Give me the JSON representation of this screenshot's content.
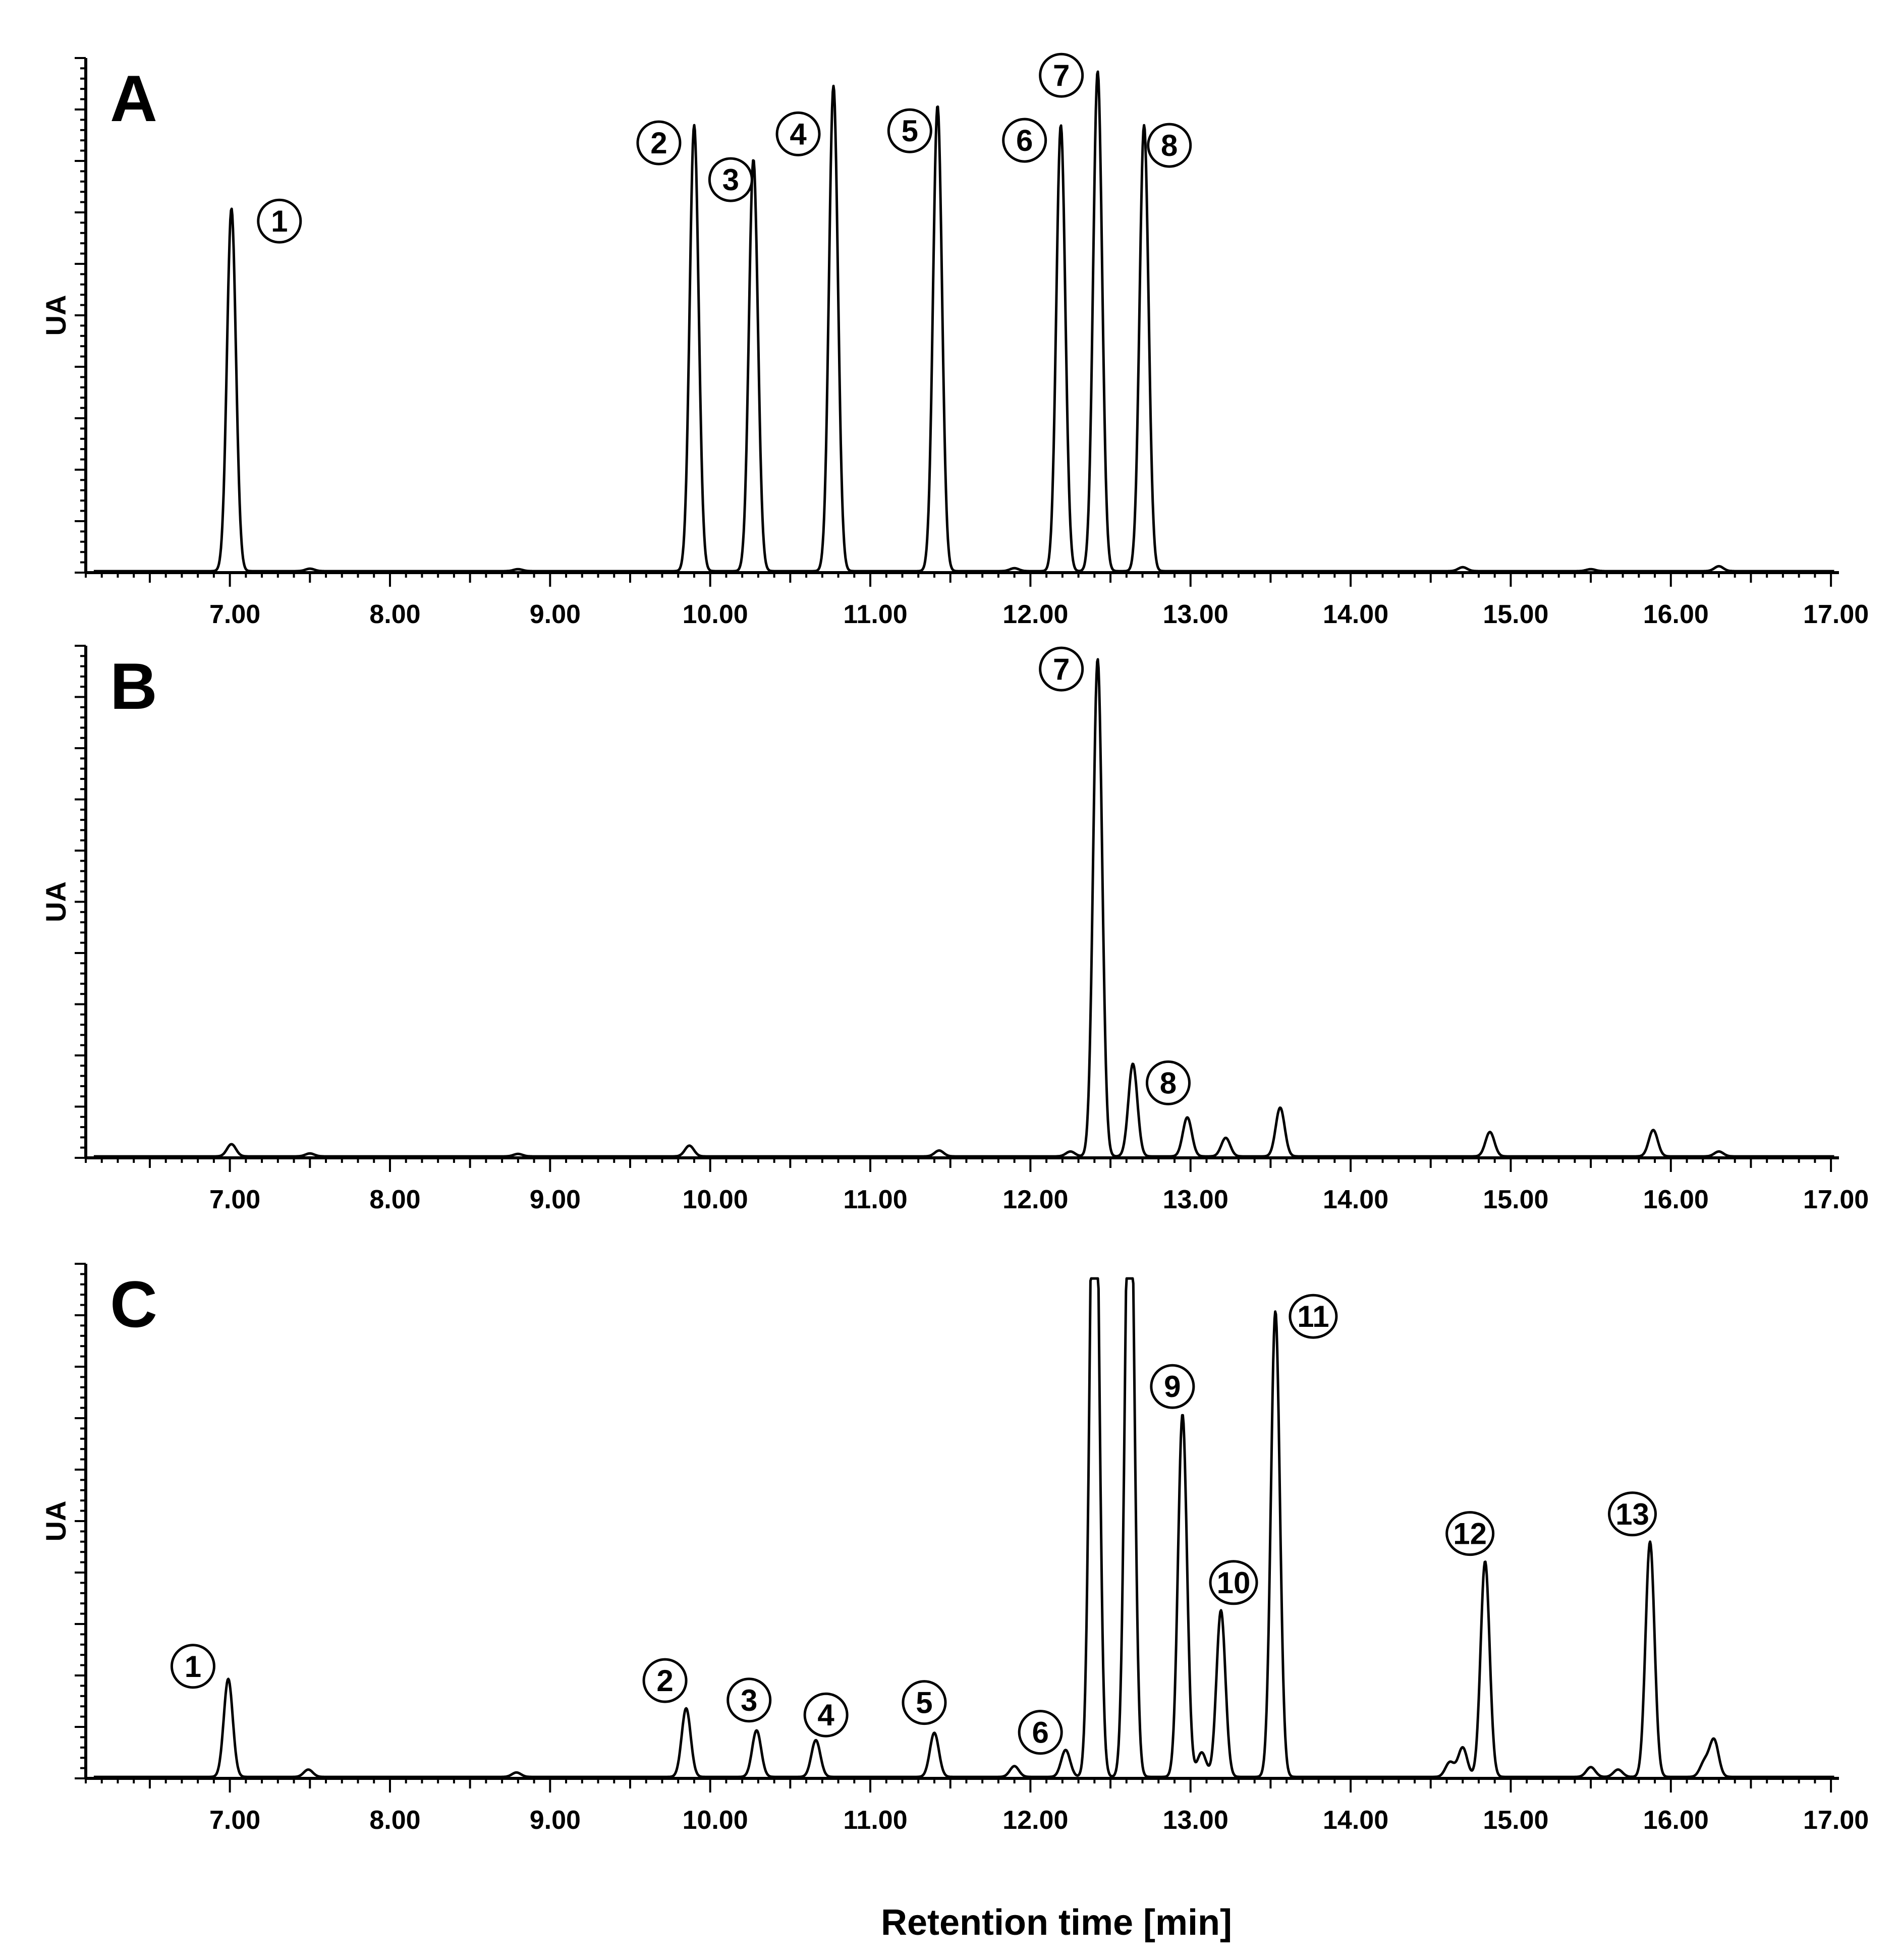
{
  "figure": {
    "xlabel": "Retention time [min]"
  },
  "chart_data": [
    {
      "type": "line",
      "panel": "A",
      "ylabel": "UA",
      "xlabel": "",
      "xlim": [
        6.1,
        17.05
      ],
      "ylim": [
        0,
        1.05
      ],
      "xticks": [
        "7.00",
        "8.00",
        "9.00",
        "10.00",
        "11.00",
        "12.00",
        "13.00",
        "14.00",
        "15.00",
        "16.00",
        "17.00"
      ],
      "baseline": 0.003,
      "peaks": [
        {
          "rt": 7.01,
          "height": 0.74,
          "label": "1"
        },
        {
          "rt": 7.5,
          "height": 0.005
        },
        {
          "rt": 8.8,
          "height": 0.004
        },
        {
          "rt": 9.9,
          "height": 0.91,
          "label": "2"
        },
        {
          "rt": 10.27,
          "height": 0.84,
          "label": "3"
        },
        {
          "rt": 10.77,
          "height": 0.99,
          "label": "4"
        },
        {
          "rt": 11.42,
          "height": 0.95,
          "label": "5"
        },
        {
          "rt": 11.9,
          "height": 0.006
        },
        {
          "rt": 12.19,
          "height": 0.91,
          "label": "6"
        },
        {
          "rt": 12.42,
          "height": 1.02,
          "label": "7"
        },
        {
          "rt": 12.71,
          "height": 0.91,
          "label": "8"
        },
        {
          "rt": 14.7,
          "height": 0.008
        },
        {
          "rt": 15.5,
          "height": 0.004
        },
        {
          "rt": 16.3,
          "height": 0.01
        }
      ]
    },
    {
      "type": "line",
      "panel": "B",
      "ylabel": "UA",
      "xlabel": "",
      "xlim": [
        6.1,
        17.05
      ],
      "ylim": [
        0,
        1.05
      ],
      "xticks": [
        "7.00",
        "8.00",
        "9.00",
        "10.00",
        "11.00",
        "12.00",
        "13.00",
        "14.00",
        "15.00",
        "16.00",
        "17.00"
      ],
      "baseline": 0.003,
      "peaks": [
        {
          "rt": 7.01,
          "height": 0.025
        },
        {
          "rt": 7.5,
          "height": 0.006
        },
        {
          "rt": 8.8,
          "height": 0.005
        },
        {
          "rt": 9.87,
          "height": 0.022
        },
        {
          "rt": 11.43,
          "height": 0.012
        },
        {
          "rt": 12.25,
          "height": 0.01
        },
        {
          "rt": 12.42,
          "height": 1.02,
          "label": "7"
        },
        {
          "rt": 12.64,
          "height": 0.19,
          "label": "8"
        },
        {
          "rt": 12.98,
          "height": 0.08
        },
        {
          "rt": 13.22,
          "height": 0.038
        },
        {
          "rt": 13.56,
          "height": 0.1
        },
        {
          "rt": 14.87,
          "height": 0.05
        },
        {
          "rt": 15.89,
          "height": 0.054
        },
        {
          "rt": 16.3,
          "height": 0.01
        }
      ]
    },
    {
      "type": "line",
      "panel": "C",
      "ylabel": "UA",
      "xlabel": "",
      "xlim": [
        6.1,
        17.05
      ],
      "ylim": [
        0,
        1.05
      ],
      "xticks": [
        "7.00",
        "8.00",
        "9.00",
        "10.00",
        "11.00",
        "12.00",
        "13.00",
        "14.00",
        "15.00",
        "16.00",
        "17.00"
      ],
      "baseline": 0.003,
      "clip_top": 1.02,
      "peaks": [
        {
          "rt": 6.99,
          "height": 0.2,
          "label": "1"
        },
        {
          "rt": 7.49,
          "height": 0.015
        },
        {
          "rt": 8.79,
          "height": 0.009
        },
        {
          "rt": 9.85,
          "height": 0.14,
          "label": "2"
        },
        {
          "rt": 10.29,
          "height": 0.095,
          "label": "3"
        },
        {
          "rt": 10.66,
          "height": 0.075,
          "label": "4"
        },
        {
          "rt": 11.4,
          "height": 0.09,
          "label": "5"
        },
        {
          "rt": 11.9,
          "height": 0.022
        },
        {
          "rt": 12.22,
          "height": 0.055,
          "label": "6"
        },
        {
          "rt": 12.4,
          "height": 1.5,
          "clipped": true
        },
        {
          "rt": 12.62,
          "height": 1.4,
          "clipped": true
        },
        {
          "rt": 12.95,
          "height": 0.74,
          "label": "9"
        },
        {
          "rt": 13.07,
          "height": 0.05
        },
        {
          "rt": 13.19,
          "height": 0.34,
          "label": "10"
        },
        {
          "rt": 13.53,
          "height": 0.95,
          "label": "11"
        },
        {
          "rt": 14.62,
          "height": 0.03
        },
        {
          "rt": 14.7,
          "height": 0.06
        },
        {
          "rt": 14.84,
          "height": 0.44,
          "label": "12"
        },
        {
          "rt": 15.5,
          "height": 0.02
        },
        {
          "rt": 15.67,
          "height": 0.015
        },
        {
          "rt": 15.87,
          "height": 0.48,
          "label": "13"
        },
        {
          "rt": 16.21,
          "height": 0.03
        },
        {
          "rt": 16.27,
          "height": 0.075
        }
      ]
    }
  ]
}
